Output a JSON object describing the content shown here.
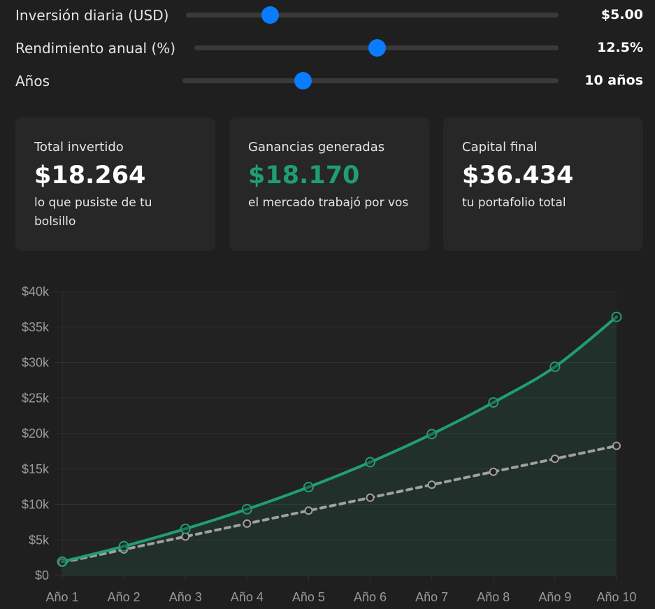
{
  "sliders": [
    {
      "label": "Inversión diaria (USD)",
      "value": "$5.00",
      "position": 0.225
    },
    {
      "label": "Rendimiento anual (%)",
      "value": "12.5%",
      "position": 0.5
    },
    {
      "label": "Años",
      "value": "10 años",
      "position": 0.319
    }
  ],
  "cards": [
    {
      "title": "Total invertido",
      "value": "$18.264",
      "subtitle": "lo que pusiste de tu bolsillo"
    },
    {
      "title": "Ganancias generadas",
      "value": "$18.170",
      "subtitle": "el mercado trabajó por vos"
    },
    {
      "title": "Capital final",
      "value": "$36.434",
      "subtitle": "tu portafolio total"
    }
  ],
  "colors": {
    "accent": "#0a7cff",
    "green": "#1f9e74",
    "invested_line": "#a0a0a0",
    "background": "#1f1f1f",
    "card": "#272727"
  },
  "chart_data": {
    "type": "line",
    "categories": [
      "Año 1",
      "Año 2",
      "Año 3",
      "Año 4",
      "Año 5",
      "Año 6",
      "Año 7",
      "Año 8",
      "Año 9",
      "Año 10"
    ],
    "series": [
      {
        "values": [
          1933,
          4112,
          6567,
          9332,
          12449,
          15960,
          19917,
          24376,
          29400,
          36434
        ],
        "color": "#1f9e74",
        "style": "solid",
        "area": true
      },
      {
        "values": [
          1826,
          3653,
          5479,
          7306,
          9132,
          10958,
          12785,
          14611,
          16438,
          18264
        ],
        "color": "#a0a0a0",
        "style": "dashed",
        "area": false
      }
    ],
    "ylim": [
      0,
      40000
    ],
    "yticks": [
      0,
      5000,
      10000,
      15000,
      20000,
      25000,
      30000,
      35000,
      40000
    ],
    "ytick_labels": [
      "$0",
      "$5k",
      "$10k",
      "$15k",
      "$20k",
      "$25k",
      "$30k",
      "$35k",
      "$40k"
    ],
    "grid": true,
    "legend": "none"
  }
}
